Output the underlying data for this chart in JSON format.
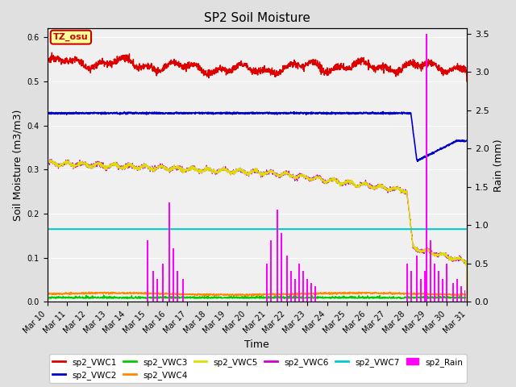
{
  "title": "SP2 Soil Moisture",
  "xlabel": "Time",
  "ylabel_left": "Soil Moisture (m3/m3)",
  "ylabel_right": "Rain (mm)",
  "ylim_left": [
    0.0,
    0.62
  ],
  "ylim_right": [
    0.0,
    3.57
  ],
  "annotation_text": "TZ_osu",
  "annotation_color": "#cc0000",
  "annotation_bg": "#ffff99",
  "vwc1_color": "#dd0000",
  "vwc2_color": "#0000cc",
  "vwc3_color": "#00cc00",
  "vwc4_color": "#ff8800",
  "vwc5_color": "#dddd00",
  "vwc6_color": "#cc00cc",
  "vwc7_color": "#00cccc",
  "rain_color": "#ff00ff",
  "background_color": "#e0e0e0",
  "plot_bg_color": "#f0f0f0",
  "grid_color": "#ffffff",
  "n_days": 21,
  "n_pts": 2000,
  "legend_order": [
    "sp2_VWC1",
    "sp2_VWC2",
    "sp2_VWC3",
    "sp2_VWC4",
    "sp2_VWC5",
    "sp2_VWC6",
    "sp2_VWC7",
    "sp2_Rain"
  ]
}
